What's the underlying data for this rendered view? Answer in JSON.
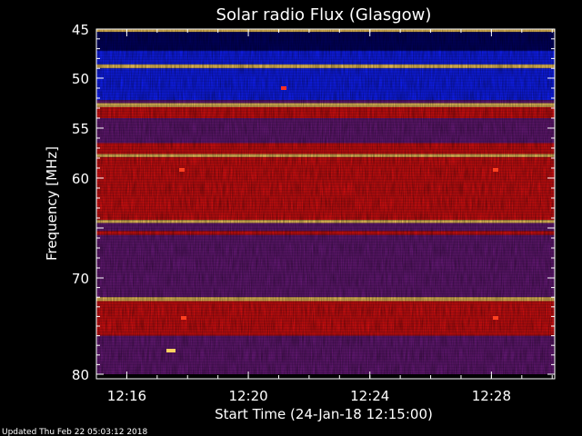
{
  "chart_data": {
    "type": "heatmap",
    "title": "Solar radio Flux (Glasgow)",
    "xlabel": "Start Time (24-Jan-18 12:15:00)",
    "ylabel": "Frequency [MHz]",
    "x_ticks": [
      "12:16",
      "12:20",
      "12:24",
      "12:28"
    ],
    "y_ticks": [
      45,
      50,
      55,
      60,
      65,
      70,
      80
    ],
    "y_tick_labels": [
      "45",
      "50",
      "55",
      "60",
      "",
      "70",
      "80"
    ],
    "xlim": [
      "12:15:00",
      "12:30:05"
    ],
    "ylim": [
      45,
      80
    ],
    "colors": {
      "low": "#000066",
      "blue": "#1020ff",
      "purple": "#6a1a7a",
      "red": "#dd1010",
      "bright": "#ffd060"
    },
    "bands_mhz": [
      {
        "from": 45.0,
        "to": 45.3,
        "level": "bright"
      },
      {
        "from": 45.3,
        "to": 47.2,
        "level": "low"
      },
      {
        "from": 47.2,
        "to": 48.6,
        "level": "blue"
      },
      {
        "from": 48.6,
        "to": 49.0,
        "level": "bright"
      },
      {
        "from": 49.0,
        "to": 52.2,
        "level": "blue"
      },
      {
        "from": 52.2,
        "to": 52.5,
        "level": "purple"
      },
      {
        "from": 52.5,
        "to": 52.9,
        "level": "bright"
      },
      {
        "from": 52.9,
        "to": 54.0,
        "level": "red"
      },
      {
        "from": 54.0,
        "to": 56.5,
        "level": "purple"
      },
      {
        "from": 56.5,
        "to": 57.6,
        "level": "red"
      },
      {
        "from": 57.6,
        "to": 57.9,
        "level": "bright"
      },
      {
        "from": 57.9,
        "to": 63.0,
        "level": "red"
      },
      {
        "from": 63.0,
        "to": 64.2,
        "level": "red"
      },
      {
        "from": 64.2,
        "to": 64.5,
        "level": "bright"
      },
      {
        "from": 64.5,
        "to": 65.3,
        "level": "purple"
      },
      {
        "from": 65.3,
        "to": 65.7,
        "level": "red"
      },
      {
        "from": 65.7,
        "to": 68.0,
        "level": "purple"
      },
      {
        "from": 68.0,
        "to": 72.0,
        "level": "purple"
      },
      {
        "from": 72.0,
        "to": 72.4,
        "level": "bright"
      },
      {
        "from": 72.4,
        "to": 76.0,
        "level": "red"
      },
      {
        "from": 76.0,
        "to": 80.0,
        "level": "purple"
      }
    ],
    "grid": false
  },
  "footer": {
    "updated": "Updated Thu Feb 22 05:03:12 2018"
  }
}
